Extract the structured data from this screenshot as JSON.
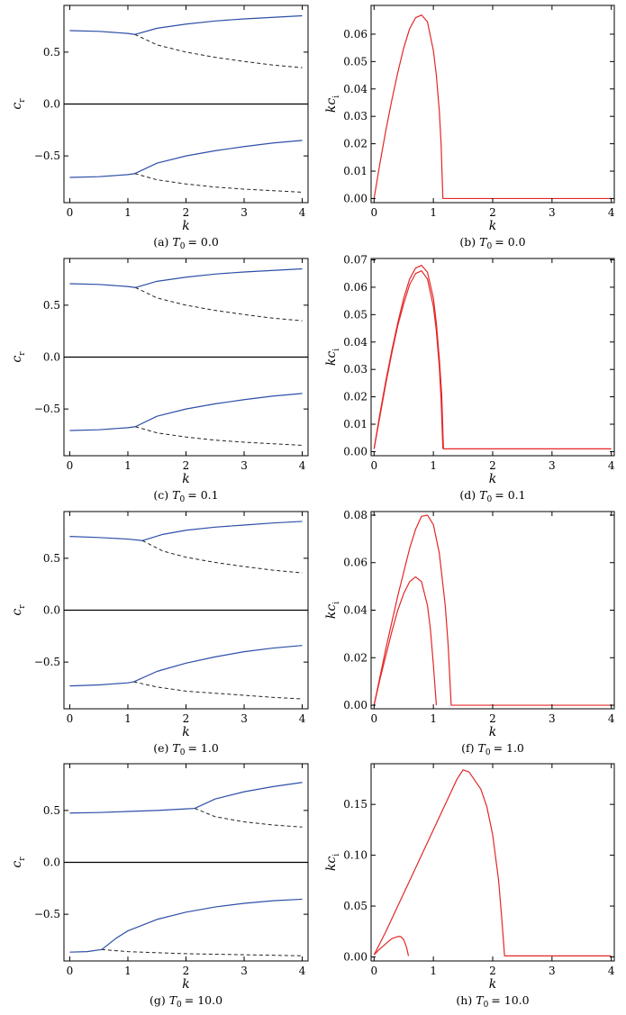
{
  "figure": {
    "captions": [
      "(a) T0 = 0.0",
      "(b) T0 = 0.0",
      "(c) T0 = 0.1",
      "(d) T0 = 0.1",
      "(e) T0 = 1.0",
      "(f) T0 = 1.0",
      "(g) T0 = 10.0",
      "(h) T0 = 10.0"
    ]
  },
  "colors": {
    "phase_speed": "#2d4fa8",
    "growth_rate": "#e32727",
    "dashed": "#222222",
    "axis": "#000000"
  },
  "chart_data": [
    {
      "id": "a",
      "type": "line",
      "caption": "(a) T0 = 0.0",
      "caption_prefix": "(a)",
      "caption_var": "T",
      "caption_sub": "0",
      "caption_value": "= 0.0",
      "xlabel": "k",
      "ylabel": "c",
      "ylabel_sub": "r",
      "xlim": [
        -0.1,
        4.1
      ],
      "ylim": [
        -0.95,
        0.95
      ],
      "xticks": [
        0,
        1,
        2,
        3,
        4
      ],
      "xtick_labels": [
        "0",
        "1",
        "2",
        "3",
        "4"
      ],
      "yticks": [
        -0.5,
        0.0,
        0.5
      ],
      "ytick_labels": [
        "−0.5",
        "0.0",
        "0.5"
      ],
      "zero_line": true,
      "series": [
        {
          "style": "solid",
          "x": [
            0,
            0.5,
            1.0,
            1.12,
            1.5,
            2.0,
            2.5,
            3.0,
            3.5,
            4.0
          ],
          "y": [
            0.707,
            0.7,
            0.68,
            0.67,
            0.73,
            0.77,
            0.8,
            0.82,
            0.835,
            0.85
          ]
        },
        {
          "style": "dashed",
          "x": [
            1.12,
            1.5,
            2.0,
            2.5,
            3.0,
            3.5,
            4.0
          ],
          "y": [
            0.67,
            0.57,
            0.5,
            0.45,
            0.41,
            0.375,
            0.35
          ]
        },
        {
          "style": "solid",
          "x": [
            0,
            0.5,
            1.0,
            1.12,
            1.5,
            2.0,
            2.5,
            3.0,
            3.5,
            4.0
          ],
          "y": [
            -0.707,
            -0.7,
            -0.68,
            -0.67,
            -0.57,
            -0.5,
            -0.45,
            -0.41,
            -0.375,
            -0.35
          ]
        },
        {
          "style": "dashed",
          "x": [
            1.12,
            1.5,
            2.0,
            2.5,
            3.0,
            3.5,
            4.0
          ],
          "y": [
            -0.67,
            -0.73,
            -0.77,
            -0.8,
            -0.82,
            -0.835,
            -0.85
          ]
        }
      ]
    },
    {
      "id": "b",
      "type": "line",
      "caption": "(b) T0 = 0.0",
      "caption_prefix": "(b)",
      "caption_var": "T",
      "caption_sub": "0",
      "caption_value": "= 0.0",
      "xlabel": "k",
      "ylabel": "kc",
      "ylabel_sub": "i",
      "xlim": [
        -0.05,
        4.05
      ],
      "ylim": [
        -0.0015,
        0.0705
      ],
      "xticks": [
        0,
        1,
        2,
        3,
        4
      ],
      "xtick_labels": [
        "0",
        "1",
        "2",
        "3",
        "4"
      ],
      "yticks": [
        0.0,
        0.01,
        0.02,
        0.03,
        0.04,
        0.05,
        0.06
      ],
      "ytick_labels": [
        "0.00",
        "0.01",
        "0.02",
        "0.03",
        "0.04",
        "0.05",
        "0.06"
      ],
      "zero_line": false,
      "series": [
        {
          "style": "solid",
          "x": [
            0,
            0.1,
            0.2,
            0.3,
            0.4,
            0.5,
            0.6,
            0.7,
            0.8,
            0.9,
            1.0,
            1.05,
            1.1,
            1.13,
            1.16,
            1.2,
            4.0
          ],
          "y": [
            0,
            0.013,
            0.025,
            0.036,
            0.046,
            0.055,
            0.062,
            0.066,
            0.067,
            0.0645,
            0.054,
            0.045,
            0.032,
            0.02,
            0.0,
            0.0,
            0.0
          ]
        }
      ]
    },
    {
      "id": "c",
      "type": "line",
      "caption": "(c) T0 = 0.1",
      "caption_prefix": "(c)",
      "caption_var": "T",
      "caption_sub": "0",
      "caption_value": "= 0.1",
      "xlabel": "k",
      "ylabel": "c",
      "ylabel_sub": "r",
      "xlim": [
        -0.1,
        4.1
      ],
      "ylim": [
        -0.95,
        0.95
      ],
      "xticks": [
        0,
        1,
        2,
        3,
        4
      ],
      "xtick_labels": [
        "0",
        "1",
        "2",
        "3",
        "4"
      ],
      "yticks": [
        -0.5,
        0.0,
        0.5
      ],
      "ytick_labels": [
        "−0.5",
        "0.0",
        "0.5"
      ],
      "zero_line": true,
      "series": [
        {
          "style": "solid",
          "x": [
            0,
            0.5,
            1.0,
            1.13,
            1.5,
            2.0,
            2.5,
            3.0,
            3.5,
            4.0
          ],
          "y": [
            0.707,
            0.7,
            0.68,
            0.67,
            0.73,
            0.77,
            0.8,
            0.82,
            0.835,
            0.85
          ]
        },
        {
          "style": "dashed",
          "x": [
            1.13,
            1.5,
            2.0,
            2.5,
            3.0,
            3.5,
            4.0
          ],
          "y": [
            0.67,
            0.57,
            0.5,
            0.45,
            0.41,
            0.375,
            0.35
          ]
        },
        {
          "style": "solid",
          "x": [
            0,
            0.5,
            1.0,
            1.13,
            1.5,
            2.0,
            2.5,
            3.0,
            3.5,
            4.0
          ],
          "y": [
            -0.707,
            -0.7,
            -0.68,
            -0.67,
            -0.57,
            -0.5,
            -0.45,
            -0.41,
            -0.375,
            -0.35
          ]
        },
        {
          "style": "dashed",
          "x": [
            1.13,
            1.5,
            2.0,
            2.5,
            3.0,
            3.5,
            4.0
          ],
          "y": [
            -0.67,
            -0.73,
            -0.77,
            -0.8,
            -0.82,
            -0.835,
            -0.85
          ]
        }
      ]
    },
    {
      "id": "d",
      "type": "line",
      "caption": "(d) T0 = 0.1",
      "caption_prefix": "(d)",
      "caption_var": "T",
      "caption_sub": "0",
      "caption_value": "= 0.1",
      "xlabel": "k",
      "ylabel": "kc",
      "ylabel_sub": "i",
      "xlim": [
        -0.05,
        4.05
      ],
      "ylim": [
        -0.0015,
        0.0705
      ],
      "xticks": [
        0,
        1,
        2,
        3,
        4
      ],
      "xtick_labels": [
        "0",
        "1",
        "2",
        "3",
        "4"
      ],
      "yticks": [
        0.0,
        0.01,
        0.02,
        0.03,
        0.04,
        0.05,
        0.06,
        0.07
      ],
      "ytick_labels": [
        "0.00",
        "0.01",
        "0.02",
        "0.03",
        "0.04",
        "0.05",
        "0.06",
        "0.07"
      ],
      "zero_line": false,
      "series": [
        {
          "style": "solid",
          "x": [
            0,
            0.1,
            0.2,
            0.3,
            0.4,
            0.5,
            0.6,
            0.7,
            0.8,
            0.9,
            1.0,
            1.05,
            1.1,
            1.14,
            1.17,
            1.2,
            4.0
          ],
          "y": [
            0.001,
            0.014,
            0.026,
            0.037,
            0.047,
            0.056,
            0.063,
            0.067,
            0.068,
            0.0655,
            0.056,
            0.047,
            0.034,
            0.021,
            0.001,
            0.001,
            0.001
          ]
        },
        {
          "style": "solid",
          "x": [
            0,
            0.1,
            0.2,
            0.3,
            0.4,
            0.5,
            0.6,
            0.7,
            0.8,
            0.9,
            1.0,
            1.05,
            1.1,
            1.13,
            1.16
          ],
          "y": [
            0.001,
            0.013,
            0.025,
            0.036,
            0.046,
            0.054,
            0.061,
            0.065,
            0.066,
            0.063,
            0.053,
            0.044,
            0.031,
            0.019,
            0.001
          ]
        }
      ]
    },
    {
      "id": "e",
      "type": "line",
      "caption": "(e) T0 = 1.0",
      "caption_prefix": "(e)",
      "caption_var": "T",
      "caption_sub": "0",
      "caption_value": "= 1.0",
      "xlabel": "k",
      "ylabel": "c",
      "ylabel_sub": "r",
      "xlim": [
        -0.1,
        4.1
      ],
      "ylim": [
        -0.95,
        0.95
      ],
      "xticks": [
        0,
        1,
        2,
        3,
        4
      ],
      "xtick_labels": [
        "0",
        "1",
        "2",
        "3",
        "4"
      ],
      "yticks": [
        -0.5,
        0.0,
        0.5
      ],
      "ytick_labels": [
        "−0.5",
        "0.0",
        "0.5"
      ],
      "zero_line": true,
      "series": [
        {
          "style": "solid",
          "x": [
            0,
            0.5,
            1.0,
            1.25,
            1.6,
            2.0,
            2.5,
            3.0,
            3.5,
            4.0
          ],
          "y": [
            0.71,
            0.7,
            0.685,
            0.67,
            0.73,
            0.77,
            0.8,
            0.82,
            0.84,
            0.855
          ]
        },
        {
          "style": "dashed",
          "x": [
            1.25,
            1.6,
            2.0,
            2.5,
            3.0,
            3.5,
            4.0
          ],
          "y": [
            0.67,
            0.57,
            0.51,
            0.46,
            0.42,
            0.385,
            0.36
          ]
        },
        {
          "style": "solid",
          "x": [
            0,
            0.5,
            1.0,
            1.1,
            1.5,
            2.0,
            2.5,
            3.0,
            3.5,
            4.0
          ],
          "y": [
            -0.73,
            -0.72,
            -0.7,
            -0.69,
            -0.59,
            -0.51,
            -0.45,
            -0.4,
            -0.365,
            -0.34
          ]
        },
        {
          "style": "dashed",
          "x": [
            1.1,
            1.5,
            2.0,
            2.5,
            3.0,
            3.5,
            4.0
          ],
          "y": [
            -0.69,
            -0.74,
            -0.78,
            -0.8,
            -0.82,
            -0.84,
            -0.855
          ]
        }
      ]
    },
    {
      "id": "f",
      "type": "line",
      "caption": "(f) T0 = 1.0",
      "caption_prefix": "(f)",
      "caption_var": "T",
      "caption_sub": "0",
      "caption_value": "= 1.0",
      "xlabel": "k",
      "ylabel": "kc",
      "ylabel_sub": "i",
      "xlim": [
        -0.05,
        4.05
      ],
      "ylim": [
        -0.0015,
        0.0815
      ],
      "xticks": [
        0,
        1,
        2,
        3,
        4
      ],
      "xtick_labels": [
        "0",
        "1",
        "2",
        "3",
        "4"
      ],
      "yticks": [
        0.0,
        0.02,
        0.04,
        0.06,
        0.08
      ],
      "ytick_labels": [
        "0.00",
        "0.02",
        "0.04",
        "0.06",
        "0.08"
      ],
      "zero_line": false,
      "series": [
        {
          "style": "solid",
          "x": [
            0,
            0.1,
            0.2,
            0.3,
            0.4,
            0.5,
            0.6,
            0.7,
            0.8,
            0.9,
            1.0,
            1.1,
            1.2,
            1.25,
            1.3,
            1.4,
            4.0
          ],
          "y": [
            0,
            0.012,
            0.024,
            0.035,
            0.046,
            0.056,
            0.066,
            0.074,
            0.0795,
            0.08,
            0.076,
            0.064,
            0.042,
            0.025,
            0.0,
            0.0,
            0.0
          ]
        },
        {
          "style": "solid",
          "x": [
            0,
            0.1,
            0.2,
            0.3,
            0.4,
            0.5,
            0.6,
            0.7,
            0.8,
            0.9,
            0.95,
            1.0,
            1.05
          ],
          "y": [
            0,
            0.011,
            0.021,
            0.031,
            0.04,
            0.047,
            0.052,
            0.054,
            0.052,
            0.042,
            0.032,
            0.017,
            0.0
          ]
        }
      ]
    },
    {
      "id": "g",
      "type": "line",
      "caption": "(g) T0 = 10.0",
      "caption_prefix": "(g)",
      "caption_var": "T",
      "caption_sub": "0",
      "caption_value": "= 10.0",
      "xlabel": "k",
      "ylabel": "c",
      "ylabel_sub": "r",
      "xlim": [
        -0.1,
        4.1
      ],
      "ylim": [
        -0.95,
        0.95
      ],
      "xticks": [
        0,
        1,
        2,
        3,
        4
      ],
      "xtick_labels": [
        "0",
        "1",
        "2",
        "3",
        "4"
      ],
      "yticks": [
        -0.5,
        0.0,
        0.5
      ],
      "ytick_labels": [
        "−0.5",
        "0.0",
        "0.5"
      ],
      "zero_line": true,
      "series": [
        {
          "style": "solid",
          "x": [
            0,
            0.5,
            1.0,
            1.5,
            2.0,
            2.15,
            2.5,
            3.0,
            3.5,
            4.0
          ],
          "y": [
            0.475,
            0.48,
            0.49,
            0.5,
            0.515,
            0.52,
            0.61,
            0.68,
            0.73,
            0.77
          ]
        },
        {
          "style": "dashed",
          "x": [
            2.15,
            2.5,
            3.0,
            3.5,
            4.0
          ],
          "y": [
            0.52,
            0.44,
            0.39,
            0.36,
            0.34
          ]
        },
        {
          "style": "solid",
          "x": [
            0,
            0.3,
            0.55,
            0.8,
            1.0,
            1.5,
            2.0,
            2.5,
            3.0,
            3.5,
            4.0
          ],
          "y": [
            -0.865,
            -0.86,
            -0.84,
            -0.73,
            -0.66,
            -0.55,
            -0.48,
            -0.43,
            -0.395,
            -0.37,
            -0.355
          ]
        },
        {
          "style": "dashed",
          "x": [
            0.55,
            1.0,
            1.5,
            2.0,
            2.5,
            3.0,
            3.5,
            4.0
          ],
          "y": [
            -0.84,
            -0.86,
            -0.87,
            -0.88,
            -0.885,
            -0.89,
            -0.895,
            -0.9
          ]
        }
      ]
    },
    {
      "id": "h",
      "type": "line",
      "caption": "(h) T0 = 10.0",
      "caption_prefix": "(h)",
      "caption_var": "T",
      "caption_sub": "0",
      "caption_value": "= 10.0",
      "xlabel": "k",
      "ylabel": "kc",
      "ylabel_sub": "i",
      "xlim": [
        -0.05,
        4.05
      ],
      "ylim": [
        -0.004,
        0.19
      ],
      "xticks": [
        0,
        1,
        2,
        3,
        4
      ],
      "xtick_labels": [
        "0",
        "1",
        "2",
        "3",
        "4"
      ],
      "yticks": [
        0.0,
        0.05,
        0.1,
        0.15
      ],
      "ytick_labels": [
        "0.00",
        "0.05",
        "0.10",
        "0.15"
      ],
      "zero_line": false,
      "series": [
        {
          "style": "solid",
          "x": [
            0,
            0.2,
            0.4,
            0.6,
            0.8,
            1.0,
            1.2,
            1.4,
            1.5,
            1.6,
            1.8,
            1.9,
            2.0,
            2.1,
            2.15,
            2.2,
            2.3,
            4.0
          ],
          "y": [
            0.002,
            0.025,
            0.05,
            0.075,
            0.1,
            0.125,
            0.15,
            0.175,
            0.184,
            0.182,
            0.165,
            0.148,
            0.12,
            0.075,
            0.04,
            0.001,
            0.001,
            0.001
          ]
        },
        {
          "style": "solid",
          "x": [
            0,
            0.1,
            0.2,
            0.3,
            0.4,
            0.45,
            0.5,
            0.55,
            0.58
          ],
          "y": [
            0.002,
            0.008,
            0.013,
            0.018,
            0.02,
            0.02,
            0.017,
            0.009,
            0.001
          ]
        }
      ]
    }
  ]
}
